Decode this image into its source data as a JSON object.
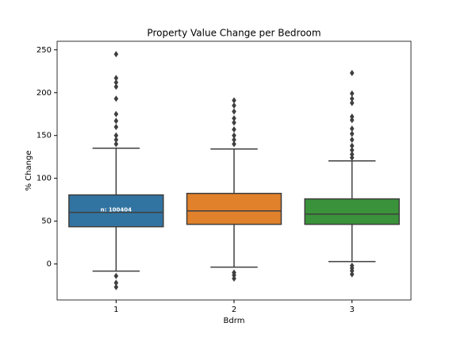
{
  "chart_data": {
    "type": "box",
    "title": "Property Value Change per Bedroom",
    "x_label": "Bdrm",
    "y_label": "% Change",
    "categories": [
      "1",
      "2",
      "3"
    ],
    "colors": [
      "#3274a1",
      "#e1812c",
      "#3a923a"
    ],
    "annotation": "n: 100404",
    "boxes": [
      {
        "whislo": -8.3,
        "q1": 43.5,
        "med": 60.2,
        "q3": 80.6,
        "whishi": 135.2,
        "fliers": [
          245,
          217,
          212,
          207,
          193,
          175,
          167,
          160,
          150,
          145,
          140,
          -14,
          -22,
          -27
        ]
      },
      {
        "whislo": -3.7,
        "q1": 46.3,
        "med": 62,
        "q3": 82.4,
        "whishi": 134.3,
        "fliers": [
          191,
          185,
          178,
          170,
          165,
          157,
          150,
          145,
          140,
          -10,
          -13,
          -17
        ]
      },
      {
        "whislo": 2.8,
        "q1": 46.3,
        "med": 58.3,
        "q3": 76,
        "whishi": 120.4,
        "fliers": [
          223,
          199,
          193,
          188,
          172,
          168,
          158,
          152,
          145,
          138,
          133,
          128,
          124,
          -2,
          -5,
          -8,
          -12
        ]
      }
    ],
    "ylim": [
      -42,
      260
    ],
    "yticks": [
      0,
      50,
      100,
      150,
      200,
      250
    ]
  }
}
